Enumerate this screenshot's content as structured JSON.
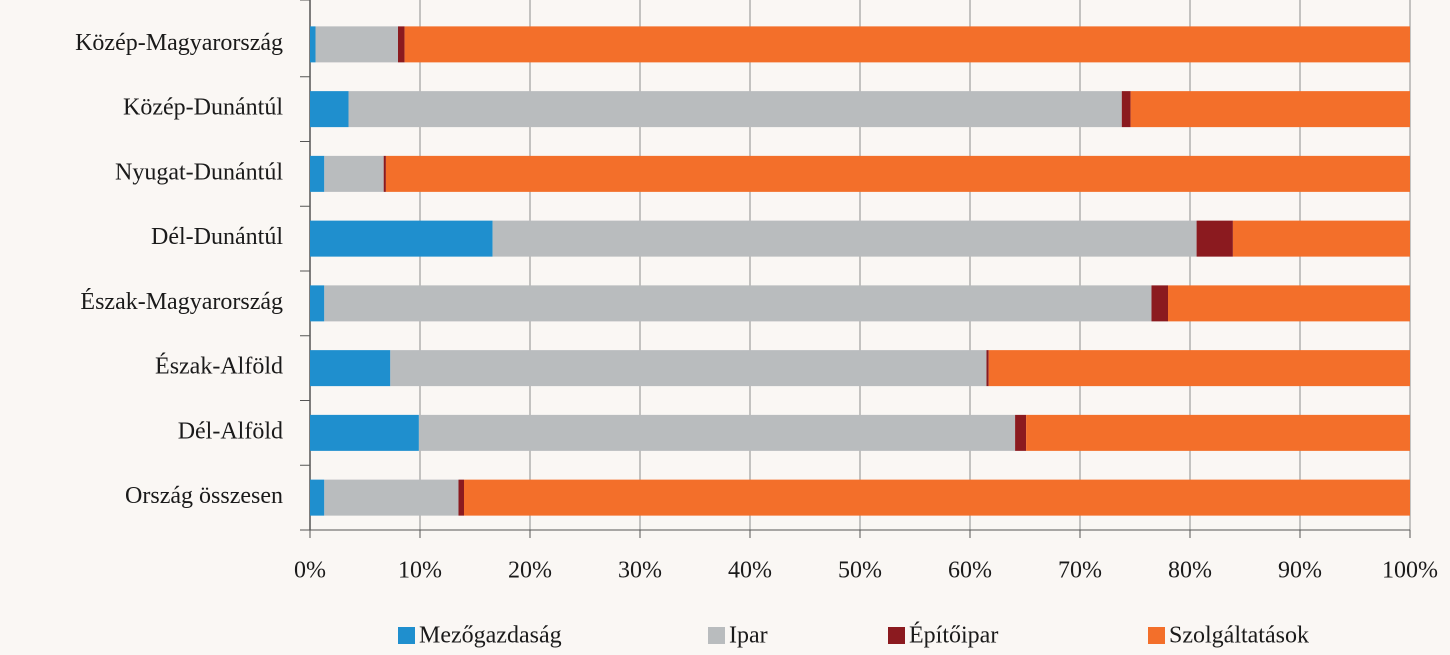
{
  "chart_data": {
    "type": "stacked-barh",
    "categories": [
      "Közép-Magyarország",
      "Közép-Dunántúl",
      "Nyugat-Dunántúl",
      "Dél-Dunántúl",
      "Észak-Magyarország",
      "Észak-Alföld",
      "Dél-Alföld",
      "Ország összesen"
    ],
    "series": [
      {
        "name": "Mezőgazdaság",
        "color": "#1f8fce",
        "values": [
          0.5,
          3.5,
          1.3,
          16.6,
          1.3,
          7.3,
          9.9,
          1.3
        ]
      },
      {
        "name": "Ipar",
        "color": "#b9bcbe",
        "values": [
          7.5,
          70.3,
          5.4,
          64.0,
          75.2,
          54.2,
          54.2,
          12.2
        ]
      },
      {
        "name": "Építőipar",
        "color": "#8b1a1f",
        "values": [
          0.6,
          0.8,
          0.2,
          3.3,
          1.5,
          0.2,
          1.0,
          0.5
        ]
      },
      {
        "name": "Szolgáltatások",
        "color": "#f36f2a",
        "values": [
          91.4,
          25.4,
          93.1,
          16.1,
          22.0,
          38.3,
          34.9,
          86.0
        ]
      }
    ],
    "xlim": [
      0,
      100
    ],
    "xticks": [
      {
        "value": 0,
        "label": "0%"
      },
      {
        "value": 10,
        "label": "10%"
      },
      {
        "value": 20,
        "label": "20%"
      },
      {
        "value": 30,
        "label": "30%"
      },
      {
        "value": 40,
        "label": "40%"
      },
      {
        "value": 50,
        "label": "50%"
      },
      {
        "value": 60,
        "label": "60%"
      },
      {
        "value": 70,
        "label": "70%"
      },
      {
        "value": 80,
        "label": "80%"
      },
      {
        "value": 90,
        "label": "90%"
      },
      {
        "value": 100,
        "label": "100%"
      }
    ],
    "grid": true,
    "legend": "bottom"
  }
}
